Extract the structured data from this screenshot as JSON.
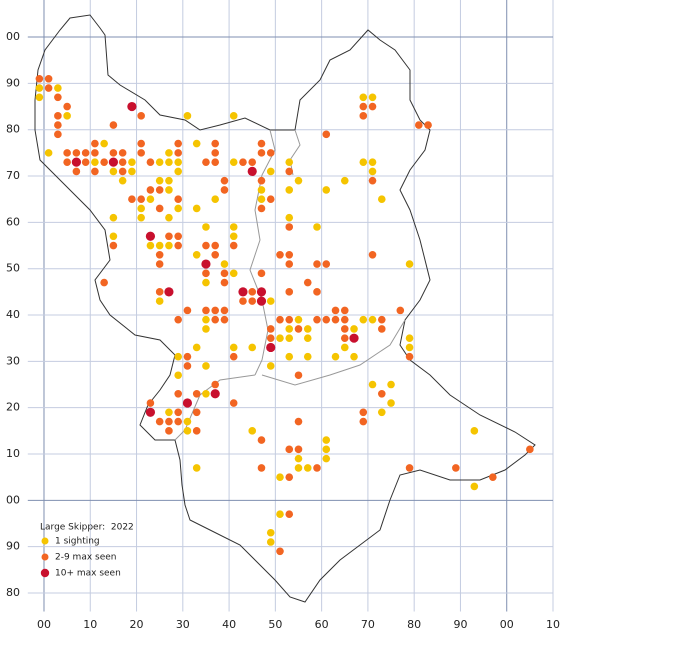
{
  "chart_data": {
    "type": "scatter",
    "legend_title": "Large Skipper:  2022",
    "xlim": [
      -3.5,
      110
    ],
    "ylim": [
      76,
      208
    ],
    "xticks": [
      {
        "value": 0,
        "label": "00"
      },
      10,
      20,
      30,
      40,
      50,
      60,
      70,
      80,
      90,
      {
        "value": 100,
        "label": "00"
      },
      {
        "value": 110,
        "label": "10"
      }
    ],
    "yticks": [
      80,
      90,
      {
        "value": 100,
        "label": "00"
      },
      {
        "value": 110,
        "label": "10"
      },
      {
        "value": 120,
        "label": "20"
      },
      {
        "value": 130,
        "label": "30"
      },
      {
        "value": 140,
        "label": "40"
      },
      {
        "value": 150,
        "label": "50"
      },
      {
        "value": 160,
        "label": "60"
      },
      {
        "value": 170,
        "label": "70"
      },
      {
        "value": 180,
        "label": "80"
      },
      {
        "value": 190,
        "label": "90"
      },
      {
        "value": 200,
        "label": "00"
      }
    ],
    "grid": true,
    "series": [
      {
        "name": "1 sighting",
        "color": "#f5c400",
        "x": [
          -1,
          -1,
          5,
          3,
          1,
          69,
          71,
          41,
          31,
          13,
          33,
          71,
          69,
          73,
          27,
          11,
          19,
          25,
          27,
          29,
          41,
          53,
          15,
          19,
          29,
          49,
          71,
          17,
          25,
          27,
          55,
          65,
          27,
          47,
          53,
          61,
          23,
          37,
          47,
          21,
          29,
          33,
          15,
          21,
          27,
          53,
          35,
          41,
          59,
          15,
          41,
          23,
          25,
          27,
          33,
          39,
          79,
          41,
          35,
          25,
          49,
          35,
          55,
          69,
          71,
          35,
          53,
          57,
          67,
          51,
          53,
          57,
          79,
          33,
          41,
          45,
          65,
          79,
          29,
          53,
          57,
          63,
          67,
          35,
          49,
          29,
          71,
          75,
          35,
          75,
          27,
          73,
          31,
          31,
          45,
          93,
          61,
          61,
          55,
          61,
          33,
          55,
          57,
          51,
          93,
          51,
          49,
          49
        ],
        "values": [
          189,
          187,
          183,
          189,
          175,
          187,
          187,
          183,
          183,
          177,
          177,
          173,
          173,
          165,
          175,
          173,
          173,
          173,
          173,
          173,
          173,
          173,
          171,
          171,
          171,
          171,
          171,
          169,
          169,
          169,
          169,
          169,
          167,
          167,
          167,
          167,
          165,
          165,
          165,
          163,
          163,
          163,
          161,
          161,
          161,
          161,
          159,
          159,
          159,
          157,
          157,
          155,
          155,
          155,
          153,
          151,
          151,
          149,
          147,
          143,
          143,
          139,
          139,
          139,
          139,
          137,
          137,
          137,
          137,
          135,
          135,
          135,
          135,
          133,
          133,
          133,
          133,
          133,
          131,
          131,
          131,
          131,
          131,
          129,
          129,
          127,
          125,
          125,
          123,
          121,
          119,
          119,
          117,
          115,
          115,
          115,
          113,
          111,
          109,
          109,
          107,
          107,
          107,
          105,
          103,
          97,
          93,
          91
        ]
      },
      {
        "name": "2-9 max seen",
        "color": "#f26522",
        "x": [
          -1,
          1,
          1,
          3,
          5,
          3,
          3,
          3,
          69,
          71,
          69,
          81,
          83,
          61,
          21,
          15,
          11,
          21,
          29,
          37,
          47,
          5,
          7,
          9,
          11,
          15,
          17,
          21,
          29,
          37,
          47,
          49,
          5,
          9,
          13,
          17,
          23,
          35,
          37,
          43,
          45,
          7,
          11,
          17,
          53,
          39,
          47,
          71,
          23,
          25,
          39,
          19,
          21,
          29,
          49,
          25,
          47,
          53,
          27,
          29,
          15,
          29,
          35,
          37,
          41,
          25,
          37,
          51,
          53,
          71,
          25,
          53,
          59,
          61,
          35,
          39,
          47,
          13,
          39,
          57,
          25,
          45,
          53,
          59,
          43,
          45,
          31,
          35,
          37,
          39,
          63,
          65,
          77,
          29,
          37,
          39,
          51,
          53,
          59,
          61,
          63,
          65,
          73,
          49,
          55,
          65,
          73,
          49,
          65,
          31,
          41,
          79,
          31,
          55,
          37,
          29,
          33,
          73,
          23,
          41,
          29,
          33,
          69,
          25,
          27,
          29,
          55,
          69,
          27,
          33,
          47,
          53,
          55,
          105,
          47,
          59,
          79,
          89,
          53,
          97,
          53,
          51
        ],
        "values": [
          191,
          191,
          189,
          187,
          185,
          183,
          181,
          179,
          185,
          185,
          183,
          181,
          181,
          179,
          183,
          181,
          177,
          177,
          177,
          177,
          177,
          175,
          175,
          175,
          175,
          175,
          175,
          175,
          175,
          175,
          175,
          175,
          173,
          173,
          173,
          173,
          173,
          173,
          173,
          173,
          173,
          171,
          171,
          171,
          171,
          169,
          169,
          169,
          167,
          167,
          167,
          165,
          165,
          165,
          165,
          163,
          163,
          159,
          157,
          157,
          155,
          155,
          155,
          155,
          155,
          153,
          153,
          153,
          153,
          153,
          151,
          151,
          151,
          151,
          149,
          149,
          149,
          147,
          147,
          147,
          145,
          145,
          145,
          145,
          143,
          143,
          141,
          141,
          141,
          141,
          141,
          141,
          141,
          139,
          139,
          139,
          139,
          139,
          139,
          139,
          139,
          139,
          139,
          137,
          137,
          137,
          137,
          135,
          135,
          131,
          131,
          131,
          129,
          127,
          125,
          123,
          123,
          123,
          121,
          121,
          119,
          119,
          119,
          117,
          117,
          117,
          117,
          117,
          115,
          115,
          113,
          111,
          111,
          111,
          107,
          107,
          107,
          107,
          105,
          105,
          97,
          89
        ]
      },
      {
        "name": "10+ max seen",
        "color": "#c8102e",
        "x": [
          19,
          7,
          15,
          23,
          35,
          27,
          43,
          47,
          47,
          49,
          67,
          23,
          31,
          37,
          45
        ],
        "values": [
          185,
          173,
          173,
          157,
          151,
          145,
          145,
          145,
          143,
          133,
          135,
          119,
          121,
          123,
          171
        ]
      }
    ]
  }
}
